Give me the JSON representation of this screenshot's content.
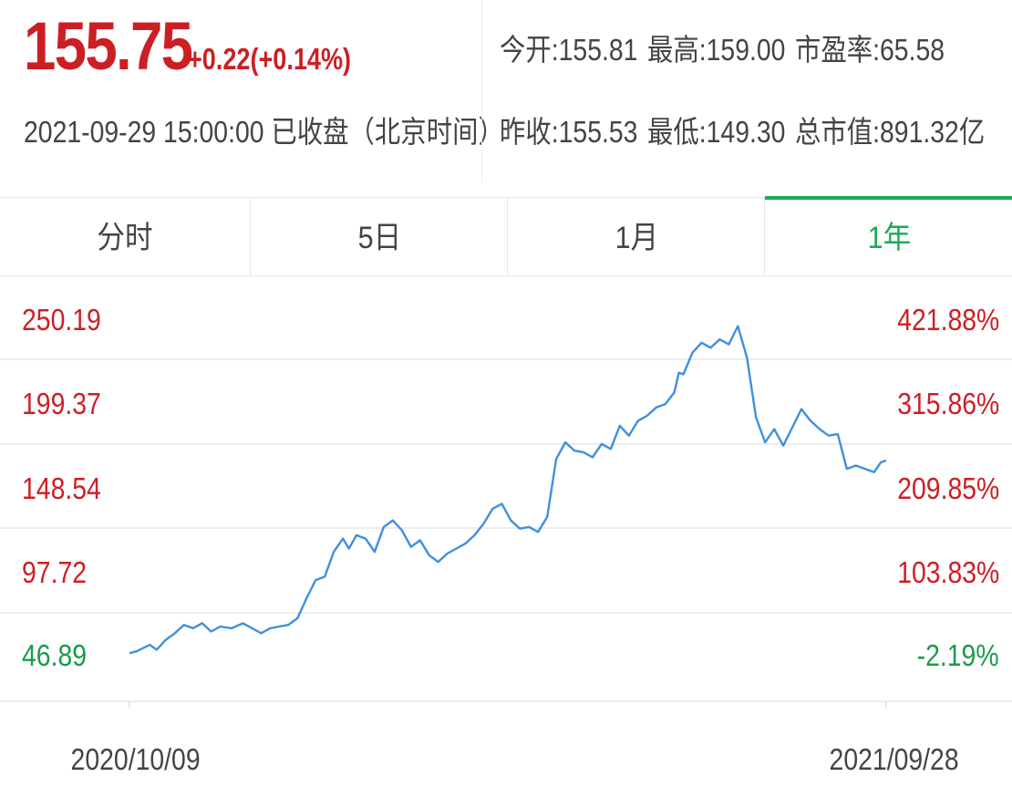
{
  "quote": {
    "price": "155.75",
    "change": "+0.22(+0.14%)",
    "datetime": "2021-09-29 15:00:00 已收盘（北京时间）",
    "stats": {
      "open": "今开:155.81",
      "high": "最高:159.00",
      "pe": "市盈率:65.58",
      "prev_close": "昨收:155.53",
      "low": "最低:149.30",
      "market_cap": "总市值:891.32亿"
    }
  },
  "tabs": [
    {
      "label": "分时",
      "active": false
    },
    {
      "label": "5日",
      "active": false
    },
    {
      "label": "1月",
      "active": false
    },
    {
      "label": "1年",
      "active": true
    }
  ],
  "colors": {
    "up": "#cc1f24",
    "down": "#1a9b4a",
    "line": "#3f8fe0",
    "grid": "#e6e6e6",
    "active_tab": "#1aab55"
  },
  "chart_data": {
    "type": "line",
    "x_range": [
      "2020/10/09",
      "2021/09/28"
    ],
    "ylim": [
      46.89,
      250.19
    ],
    "y_ticks": [
      "250.19",
      "199.37",
      "148.54",
      "97.72",
      "46.89"
    ],
    "y_ticks_right": [
      "421.88%",
      "315.86%",
      "209.85%",
      "103.83%",
      "-2.19%"
    ],
    "y_tick_colors": [
      "up",
      "up",
      "up",
      "up",
      "down"
    ],
    "x_tick_labels": [
      "2020/10/09",
      "2021/09/28"
    ],
    "grid": true,
    "series": [
      {
        "x": [
          0,
          0.009,
          0.018,
          0.027,
          0.036,
          0.048,
          0.06,
          0.072,
          0.084,
          0.096,
          0.108,
          0.12,
          0.135,
          0.15,
          0.162,
          0.174,
          0.186,
          0.198,
          0.21,
          0.222,
          0.234,
          0.246,
          0.258,
          0.27,
          0.282,
          0.29,
          0.3,
          0.312,
          0.324,
          0.336,
          0.348,
          0.36,
          0.372,
          0.384,
          0.396,
          0.408,
          0.42,
          0.432,
          0.444,
          0.456,
          0.468,
          0.48,
          0.492,
          0.504,
          0.516,
          0.528,
          0.54,
          0.552,
          0.564,
          0.576,
          0.588,
          0.6,
          0.612,
          0.624,
          0.636,
          0.648,
          0.66,
          0.672,
          0.684,
          0.696,
          0.708,
          0.72,
          0.726,
          0.732,
          0.744,
          0.756,
          0.768,
          0.78,
          0.792,
          0.804,
          0.816,
          0.828,
          0.84,
          0.852,
          0.864,
          0.876,
          0.888,
          0.9,
          0.912,
          0.924,
          0.936,
          0.948,
          0.96,
          0.972,
          0.984,
          0.993,
          1.0
        ],
        "values": [
          49,
          50,
          52,
          54,
          51,
          57,
          61,
          66,
          64,
          67,
          62,
          65,
          64,
          67,
          64,
          61,
          64,
          65,
          66,
          70,
          82,
          93,
          95,
          110,
          118,
          112,
          120,
          118,
          110,
          125,
          129,
          123,
          113,
          117,
          108,
          104,
          109,
          112,
          115,
          120,
          127,
          136,
          139,
          129,
          124,
          125,
          122,
          131,
          166,
          176,
          171,
          170,
          167,
          175,
          172,
          186,
          180,
          189,
          192,
          197,
          199,
          206,
          218,
          217,
          230,
          236,
          233,
          238,
          235,
          246,
          227,
          191,
          176,
          184,
          174,
          185,
          196,
          189,
          184,
          180,
          181,
          160,
          162,
          160,
          158,
          164,
          165
        ]
      }
    ]
  },
  "axis": {
    "x_start_label": "2020/10/09",
    "x_end_label": "2021/09/28"
  }
}
